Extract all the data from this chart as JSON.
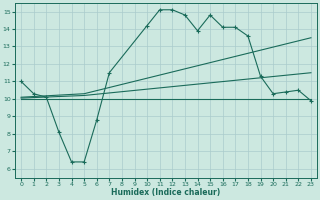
{
  "xlabel": "Humidex (Indice chaleur)",
  "bg_color": "#cce8e0",
  "grid_color": "#aacccc",
  "line_color": "#1a6b5a",
  "xlim": [
    -0.5,
    23.5
  ],
  "ylim": [
    5.5,
    15.5
  ],
  "yticks": [
    6,
    7,
    8,
    9,
    10,
    11,
    12,
    13,
    14,
    15
  ],
  "xticks": [
    0,
    1,
    2,
    3,
    4,
    5,
    6,
    7,
    8,
    9,
    10,
    11,
    12,
    13,
    14,
    15,
    16,
    17,
    18,
    19,
    20,
    21,
    22,
    23
  ],
  "line1_x": [
    0,
    1,
    2,
    3,
    4,
    5,
    6,
    7,
    10,
    11,
    12,
    13,
    14,
    15,
    16,
    17,
    18,
    19,
    20,
    21,
    22,
    23
  ],
  "line1_y": [
    11.0,
    10.3,
    10.1,
    8.1,
    6.4,
    6.4,
    8.8,
    11.5,
    14.2,
    15.1,
    15.1,
    14.8,
    13.9,
    14.8,
    14.1,
    14.1,
    13.6,
    11.3,
    10.3,
    10.4,
    10.5,
    9.9
  ],
  "line2_x": [
    0,
    5,
    23
  ],
  "line2_y": [
    10.1,
    10.3,
    13.5
  ],
  "line3_x": [
    0,
    5,
    23
  ],
  "line3_y": [
    10.05,
    10.2,
    11.5
  ],
  "line4_x": [
    0,
    5,
    23
  ],
  "line4_y": [
    10.0,
    10.0,
    10.0
  ]
}
